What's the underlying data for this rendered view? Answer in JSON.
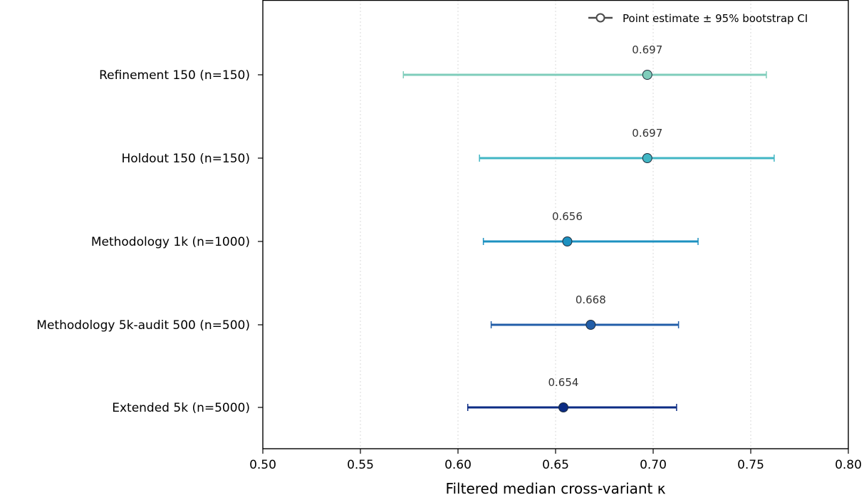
{
  "chart_data": {
    "type": "forest",
    "xlabel": "Filtered median cross-variant κ",
    "xlim": [
      0.5,
      0.8
    ],
    "xticks": [
      "0.50",
      "0.55",
      "0.60",
      "0.65",
      "0.70",
      "0.75",
      "0.80"
    ],
    "grid": "vertical dotted",
    "legend": {
      "placement": "top-right",
      "label": "Point estimate ± 95% bootstrap CI"
    },
    "rows": [
      {
        "label": "Refinement 150 (n=150)",
        "estimate": 0.697,
        "ci": [
          0.572,
          0.758
        ],
        "value_label": "0.697",
        "color": "#7fcdbb"
      },
      {
        "label": "Holdout 150 (n=150)",
        "estimate": 0.697,
        "ci": [
          0.611,
          0.762
        ],
        "value_label": "0.697",
        "color": "#41b6c4"
      },
      {
        "label": "Methodology 1k (n=1000)",
        "estimate": 0.656,
        "ci": [
          0.613,
          0.723
        ],
        "value_label": "0.656",
        "color": "#1d91c0"
      },
      {
        "label": "Methodology 5k-audit 500 (n=500)",
        "estimate": 0.668,
        "ci": [
          0.617,
          0.713
        ],
        "value_label": "0.668",
        "color": "#225ea8"
      },
      {
        "label": "Extended 5k (n=5000)",
        "estimate": 0.654,
        "ci": [
          0.605,
          0.712
        ],
        "value_label": "0.654",
        "color": "#0c2c84"
      }
    ]
  }
}
